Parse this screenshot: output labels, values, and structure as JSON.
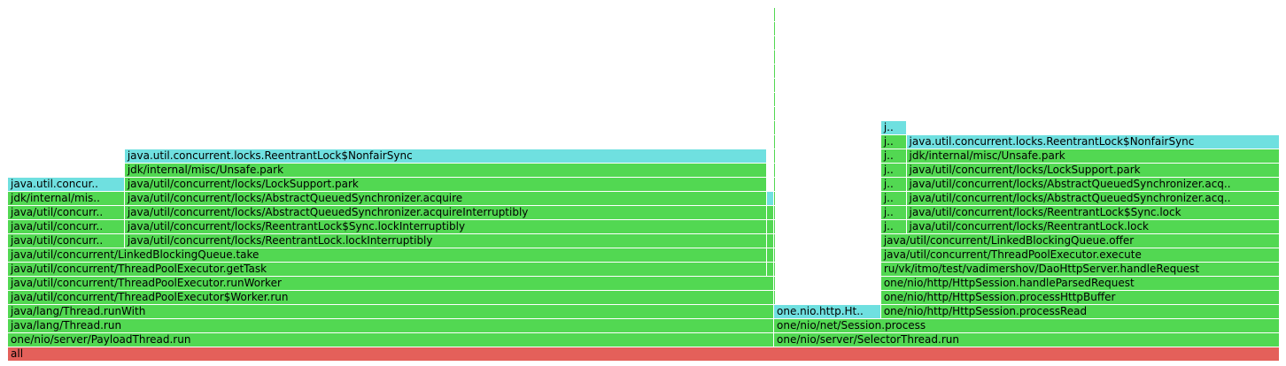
{
  "chart_data": {
    "type": "flamegraph",
    "title": "",
    "palette": {
      "java": "#52d852",
      "inlined": "#6fe0e0",
      "root": "#e4605a"
    },
    "frames": [
      {
        "label": "all",
        "start": 0,
        "end": 1000,
        "depth": 0,
        "color": "root"
      },
      {
        "label": "one/nio/server/PayloadThread.run",
        "start": 0,
        "end": 602.4,
        "depth": 1,
        "color": "java"
      },
      {
        "label": "java/lang/Thread.run",
        "start": 0,
        "end": 602.4,
        "depth": 2,
        "color": "java"
      },
      {
        "label": "java/lang/Thread.runWith",
        "start": 0,
        "end": 602.4,
        "depth": 3,
        "color": "java"
      },
      {
        "label": "java/util/concurrent/ThreadPoolExecutor$Worker.run",
        "start": 0,
        "end": 602.4,
        "depth": 4,
        "color": "java"
      },
      {
        "label": "java/util/concurrent/ThreadPoolExecutor.runWorker",
        "start": 0,
        "end": 602.4,
        "depth": 5,
        "color": "java"
      },
      {
        "label": "java/util/concurrent/ThreadPoolExecutor.getTask",
        "start": 0,
        "end": 596.9,
        "depth": 6,
        "color": "java"
      },
      {
        "label": "java/util/concurrent/LinkedBlockingQueue.take",
        "start": 0,
        "end": 596.9,
        "depth": 7,
        "color": "java"
      },
      {
        "label": "java/util/concurr..",
        "start": 0,
        "end": 91.8,
        "depth": 8,
        "color": "java"
      },
      {
        "label": "java/util/concurr..",
        "start": 0,
        "end": 91.8,
        "depth": 9,
        "color": "java"
      },
      {
        "label": "java/util/concurr..",
        "start": 0,
        "end": 91.8,
        "depth": 10,
        "color": "java"
      },
      {
        "label": "jdk/internal/mis..",
        "start": 0,
        "end": 91.8,
        "depth": 11,
        "color": "java"
      },
      {
        "label": "java.util.concur..",
        "start": 0,
        "end": 91.8,
        "depth": 12,
        "color": "inlined"
      },
      {
        "label": "java/util/concurrent/locks/ReentrantLock.lockInterruptibly",
        "start": 91.8,
        "end": 596.9,
        "depth": 8,
        "color": "java"
      },
      {
        "label": "java/util/concurrent/locks/ReentrantLock$Sync.lockInterruptibly",
        "start": 91.8,
        "end": 596.9,
        "depth": 9,
        "color": "java"
      },
      {
        "label": "java/util/concurrent/locks/AbstractQueuedSynchronizer.acquireInterruptibly",
        "start": 91.8,
        "end": 596.9,
        "depth": 10,
        "color": "java"
      },
      {
        "label": "java/util/concurrent/locks/AbstractQueuedSynchronizer.acquire",
        "start": 91.8,
        "end": 596.9,
        "depth": 11,
        "color": "java"
      },
      {
        "label": "java/util/concurrent/locks/LockSupport.park",
        "start": 91.8,
        "end": 596.9,
        "depth": 12,
        "color": "java"
      },
      {
        "label": "jdk/internal/misc/Unsafe.park",
        "start": 91.8,
        "end": 596.9,
        "depth": 13,
        "color": "java"
      },
      {
        "label": "java.util.concurrent.locks.ReentrantLock$NonfairSync",
        "start": 91.8,
        "end": 596.9,
        "depth": 14,
        "color": "inlined"
      },
      {
        "label": "",
        "start": 596.9,
        "end": 602.4,
        "depth": 6,
        "color": "java"
      },
      {
        "label": "",
        "start": 596.9,
        "end": 602.4,
        "depth": 7,
        "color": "java"
      },
      {
        "label": "",
        "start": 596.9,
        "end": 602.4,
        "depth": 8,
        "color": "java"
      },
      {
        "label": "",
        "start": 596.9,
        "end": 602.4,
        "depth": 9,
        "color": "java"
      },
      {
        "label": "",
        "start": 596.9,
        "end": 602.4,
        "depth": 10,
        "color": "java"
      },
      {
        "label": "",
        "start": 596.9,
        "end": 602.4,
        "depth": 11,
        "color": "inlined"
      },
      {
        "label": "one/nio/server/SelectorThread.run",
        "start": 602.4,
        "end": 1000,
        "depth": 1,
        "color": "java"
      },
      {
        "label": "one/nio/net/Session.process",
        "start": 602.4,
        "end": 1000,
        "depth": 2,
        "color": "java"
      },
      {
        "label": "one.nio.http.Ht..",
        "start": 602.4,
        "end": 686.5,
        "depth": 3,
        "color": "inlined"
      },
      {
        "label": "one/nio/http/HttpSession.processRead",
        "start": 686.5,
        "end": 1000,
        "depth": 3,
        "color": "java"
      },
      {
        "label": "one/nio/http/HttpSession.processHttpBuffer",
        "start": 686.5,
        "end": 1000,
        "depth": 4,
        "color": "java"
      },
      {
        "label": "one/nio/http/HttpSession.handleParsedRequest",
        "start": 686.5,
        "end": 1000,
        "depth": 5,
        "color": "java"
      },
      {
        "label": "ru/vk/itmo/test/vadimershov/DaoHttpServer.handleRequest",
        "start": 686.5,
        "end": 1000,
        "depth": 6,
        "color": "java"
      },
      {
        "label": "java/util/concurrent/ThreadPoolExecutor.execute",
        "start": 686.5,
        "end": 1000,
        "depth": 7,
        "color": "java"
      },
      {
        "label": "java/util/concurrent/LinkedBlockingQueue.offer",
        "start": 686.5,
        "end": 1000,
        "depth": 8,
        "color": "java"
      },
      {
        "label": "j..",
        "start": 686.5,
        "end": 706.5,
        "depth": 9,
        "color": "java"
      },
      {
        "label": "j..",
        "start": 686.5,
        "end": 706.5,
        "depth": 10,
        "color": "java"
      },
      {
        "label": "j..",
        "start": 686.5,
        "end": 706.5,
        "depth": 11,
        "color": "java"
      },
      {
        "label": "j..",
        "start": 686.5,
        "end": 706.5,
        "depth": 12,
        "color": "java"
      },
      {
        "label": "j..",
        "start": 686.5,
        "end": 706.5,
        "depth": 13,
        "color": "java"
      },
      {
        "label": "j..",
        "start": 686.5,
        "end": 706.5,
        "depth": 14,
        "color": "java"
      },
      {
        "label": "j..",
        "start": 686.5,
        "end": 706.5,
        "depth": 15,
        "color": "java"
      },
      {
        "label": "j..",
        "start": 686.5,
        "end": 706.5,
        "depth": 16,
        "color": "inlined"
      },
      {
        "label": "java/util/concurrent/locks/ReentrantLock.lock",
        "start": 706.5,
        "end": 1000,
        "depth": 9,
        "color": "java"
      },
      {
        "label": "java/util/concurrent/locks/ReentrantLock$Sync.lock",
        "start": 706.5,
        "end": 1000,
        "depth": 10,
        "color": "java"
      },
      {
        "label": "java/util/concurrent/locks/AbstractQueuedSynchronizer.acq..",
        "start": 706.5,
        "end": 1000,
        "depth": 11,
        "color": "java"
      },
      {
        "label": "java/util/concurrent/locks/AbstractQueuedSynchronizer.acq..",
        "start": 706.5,
        "end": 1000,
        "depth": 12,
        "color": "java"
      },
      {
        "label": "java/util/concurrent/locks/LockSupport.park",
        "start": 706.5,
        "end": 1000,
        "depth": 13,
        "color": "java"
      },
      {
        "label": "jdk/internal/misc/Unsafe.park",
        "start": 706.5,
        "end": 1000,
        "depth": 14,
        "color": "java"
      },
      {
        "label": "java.util.concurrent.locks.ReentrantLock$NonfairSync",
        "start": 706.5,
        "end": 1000,
        "depth": 15,
        "color": "inlined"
      },
      {
        "label": "",
        "start": 602.4,
        "end": 603.5,
        "depth": 4,
        "color": "java"
      },
      {
        "label": "",
        "start": 602.4,
        "end": 603.5,
        "depth": 5,
        "color": "java"
      },
      {
        "label": "",
        "start": 602.4,
        "end": 603.5,
        "depth": 6,
        "color": "java"
      },
      {
        "label": "",
        "start": 602.4,
        "end": 603.5,
        "depth": 7,
        "color": "java"
      },
      {
        "label": "",
        "start": 602.4,
        "end": 603.5,
        "depth": 8,
        "color": "java"
      },
      {
        "label": "",
        "start": 602.4,
        "end": 603.5,
        "depth": 9,
        "color": "java"
      },
      {
        "label": "",
        "start": 602.4,
        "end": 603.5,
        "depth": 10,
        "color": "java"
      },
      {
        "label": "",
        "start": 602.4,
        "end": 603.5,
        "depth": 11,
        "color": "java"
      },
      {
        "label": "",
        "start": 602.4,
        "end": 603.5,
        "depth": 12,
        "color": "java"
      },
      {
        "label": "",
        "start": 602.4,
        "end": 603.5,
        "depth": 13,
        "color": "java"
      },
      {
        "label": "",
        "start": 602.4,
        "end": 603.5,
        "depth": 14,
        "color": "java"
      },
      {
        "label": "",
        "start": 602.4,
        "end": 603.5,
        "depth": 15,
        "color": "java"
      },
      {
        "label": "",
        "start": 602.4,
        "end": 603.5,
        "depth": 16,
        "color": "java"
      },
      {
        "label": "",
        "start": 602.4,
        "end": 603.5,
        "depth": 17,
        "color": "java"
      },
      {
        "label": "",
        "start": 602.4,
        "end": 603.5,
        "depth": 18,
        "color": "java"
      },
      {
        "label": "",
        "start": 602.4,
        "end": 603.5,
        "depth": 19,
        "color": "java"
      },
      {
        "label": "",
        "start": 602.4,
        "end": 603.5,
        "depth": 20,
        "color": "java"
      },
      {
        "label": "",
        "start": 602.4,
        "end": 603.5,
        "depth": 21,
        "color": "java"
      },
      {
        "label": "",
        "start": 602.4,
        "end": 603.5,
        "depth": 22,
        "color": "java"
      },
      {
        "label": "",
        "start": 602.4,
        "end": 603.5,
        "depth": 23,
        "color": "java"
      },
      {
        "label": "",
        "start": 602.4,
        "end": 603.5,
        "depth": 24,
        "color": "java"
      }
    ]
  }
}
